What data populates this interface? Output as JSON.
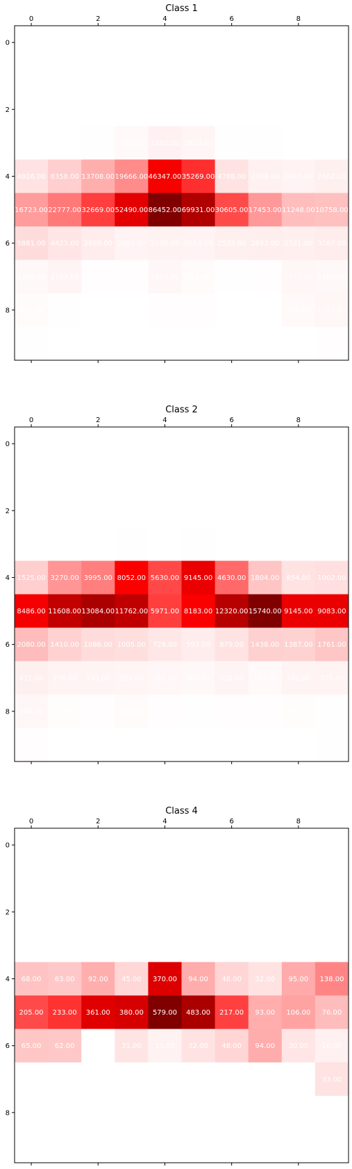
{
  "chart_data": [
    {
      "type": "heatmap",
      "title": "Class 1",
      "x_ticks": [
        "0",
        "2",
        "4",
        "6",
        "8"
      ],
      "y_ticks": [
        "0",
        "2",
        "4",
        "6",
        "8"
      ],
      "vmax": 86452,
      "colormap": "seismic",
      "grid": false,
      "values": [
        [
          0,
          0,
          0,
          0,
          0,
          0,
          0,
          0,
          0,
          0
        ],
        [
          0,
          0,
          0,
          0,
          0,
          0,
          0,
          0,
          0,
          0
        ],
        [
          0,
          15,
          0,
          0,
          0,
          0,
          0,
          0,
          0,
          0
        ],
        [
          0,
          64,
          200,
          938,
          2392,
          1618,
          131,
          96,
          16,
          0
        ],
        [
          4826,
          8358,
          13708,
          19666,
          46347,
          35269,
          4788,
          2408,
          2065,
          2462
        ],
        [
          16723,
          22777,
          32669,
          52490,
          86452,
          69931,
          30605,
          17453,
          11248,
          10758
        ],
        [
          5881,
          4423,
          2989,
          2062,
          2192,
          2054,
          2533,
          2893,
          2721,
          3287
        ],
        [
          1195,
          1793,
          308,
          387,
          1353,
          753,
          168,
          262,
          1573,
          1160
        ],
        [
          662,
          157,
          15,
          32,
          318,
          400,
          0,
          31,
          988,
          1493
        ],
        [
          109,
          0,
          0,
          0,
          0,
          0,
          0,
          0,
          0,
          282
        ]
      ]
    },
    {
      "type": "heatmap",
      "title": "Class 2",
      "x_ticks": [
        "0",
        "2",
        "4",
        "6",
        "8"
      ],
      "y_ticks": [
        "0",
        "2",
        "4",
        "6",
        "8"
      ],
      "vmax": 15740,
      "colormap": "seismic",
      "grid": false,
      "values": [
        [
          0,
          0,
          0,
          0,
          0,
          0,
          0,
          0,
          0,
          0
        ],
        [
          0,
          0,
          0,
          0,
          0,
          0,
          0,
          0,
          0,
          0
        ],
        [
          0,
          0,
          0,
          0,
          0,
          0,
          0,
          0,
          0,
          0
        ],
        [
          0,
          0,
          0,
          16,
          0,
          16,
          0,
          0,
          0,
          0
        ],
        [
          1525,
          3270,
          3995,
          8052,
          5630,
          9145,
          4630,
          1804,
          854,
          1002
        ],
        [
          8486,
          11608,
          13084,
          11762,
          5971,
          8183,
          12320,
          15740,
          9145,
          9083
        ],
        [
          2080,
          1410,
          1086,
          1005,
          728,
          593,
          879,
          1438,
          1387,
          1761
        ],
        [
          472,
          376,
          343,
          324,
          262,
          204,
          328,
          184,
          342,
          375
        ],
        [
          234,
          91,
          48,
          109,
          61,
          46,
          76,
          65,
          78,
          45
        ],
        [
          48,
          0,
          0,
          0,
          0,
          0,
          0,
          0,
          0,
          16
        ]
      ]
    },
    {
      "type": "heatmap",
      "title": "Class 4",
      "x_ticks": [
        "0",
        "2",
        "4",
        "6",
        "8"
      ],
      "y_ticks": [
        "0",
        "2",
        "4",
        "6",
        "8"
      ],
      "vmax": 579,
      "colormap": "seismic",
      "grid": false,
      "values": [
        [
          0,
          0,
          0,
          0,
          0,
          0,
          0,
          0,
          0,
          0
        ],
        [
          0,
          0,
          0,
          0,
          0,
          0,
          0,
          0,
          0,
          0
        ],
        [
          0,
          0,
          0,
          0,
          0,
          0,
          0,
          0,
          0,
          0
        ],
        [
          0,
          0,
          0,
          0,
          0,
          0,
          0,
          0,
          0,
          0
        ],
        [
          68,
          63,
          92,
          45,
          370,
          94,
          48,
          32,
          95,
          138
        ],
        [
          205,
          233,
          361,
          380,
          579,
          483,
          217,
          93,
          106,
          76
        ],
        [
          65,
          62,
          0,
          31,
          15,
          32,
          48,
          94,
          30,
          16
        ],
        [
          0,
          0,
          0,
          0,
          0,
          0,
          0,
          0,
          0,
          33
        ],
        [
          0,
          0,
          0,
          0,
          0,
          0,
          0,
          0,
          0,
          0
        ],
        [
          0,
          0,
          0,
          0,
          0,
          0,
          0,
          0,
          0,
          0
        ]
      ]
    }
  ]
}
